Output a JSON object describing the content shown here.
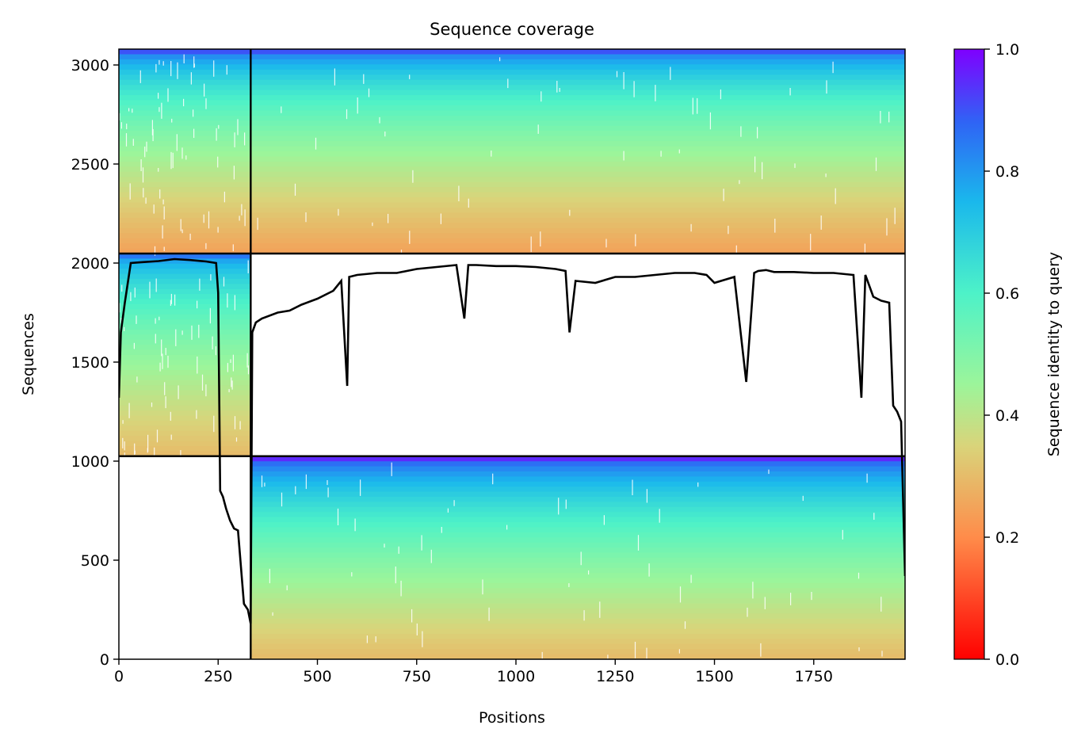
{
  "chart_data": {
    "type": "heatmap",
    "title": "Sequence coverage",
    "xlabel": "Positions",
    "ylabel": "Sequences",
    "xlim": [
      0,
      1980
    ],
    "ylim": [
      0,
      3080
    ],
    "xticks": [
      0,
      250,
      500,
      750,
      1000,
      1250,
      1500,
      1750
    ],
    "yticks": [
      0,
      500,
      1000,
      1500,
      2000,
      2500,
      3000
    ],
    "colorbar": {
      "label": "Sequence identity to query",
      "range": [
        0,
        1
      ],
      "ticks": [
        0.0,
        0.2,
        0.4,
        0.6,
        0.8,
        1.0
      ],
      "colormap": "rainbow_r"
    },
    "segment_boundaries": [
      {
        "type": "vertical",
        "x": 332
      },
      {
        "type": "horizontal",
        "y": 1025
      },
      {
        "type": "horizontal",
        "y": 2048
      }
    ],
    "blocks": [
      {
        "x": [
          0,
          332
        ],
        "y": [
          1025,
          2048
        ],
        "identity_top": 0.85,
        "identity_bottom": 0.3
      },
      {
        "x": [
          0,
          332
        ],
        "y": [
          2048,
          3080
        ],
        "identity_top": 0.9,
        "identity_bottom": 0.25
      },
      {
        "x": [
          332,
          1980
        ],
        "y": [
          0,
          1025
        ],
        "identity_top": 0.95,
        "identity_bottom": 0.3
      },
      {
        "x": [
          332,
          1980
        ],
        "y": [
          2048,
          3080
        ],
        "identity_top": 0.9,
        "identity_bottom": 0.25
      }
    ],
    "coverage_line": {
      "x": [
        0,
        5,
        15,
        30,
        60,
        100,
        140,
        180,
        220,
        245,
        250,
        255,
        262,
        270,
        280,
        290,
        300,
        315,
        325,
        332,
        336,
        345,
        360,
        400,
        430,
        460,
        500,
        540,
        560,
        575,
        580,
        600,
        650,
        700,
        750,
        800,
        850,
        870,
        880,
        900,
        950,
        1000,
        1050,
        1100,
        1125,
        1135,
        1150,
        1200,
        1250,
        1300,
        1350,
        1400,
        1450,
        1480,
        1500,
        1550,
        1580,
        1600,
        1610,
        1630,
        1650,
        1700,
        1750,
        1800,
        1850,
        1870,
        1880,
        1900,
        1920,
        1940,
        1950,
        1960,
        1970,
        1980
      ],
      "y": [
        1320,
        1650,
        1800,
        2000,
        2005,
        2010,
        2020,
        2015,
        2008,
        2000,
        1850,
        850,
        820,
        760,
        700,
        660,
        650,
        280,
        250,
        180,
        1650,
        1700,
        1720,
        1750,
        1760,
        1790,
        1820,
        1860,
        1910,
        1380,
        1930,
        1940,
        1950,
        1950,
        1970,
        1980,
        1990,
        1720,
        1990,
        1990,
        1985,
        1985,
        1980,
        1970,
        1960,
        1650,
        1910,
        1900,
        1930,
        1930,
        1940,
        1950,
        1950,
        1940,
        1900,
        1930,
        1400,
        1950,
        1960,
        1965,
        1955,
        1955,
        1950,
        1950,
        1940,
        1320,
        1940,
        1830,
        1810,
        1800,
        1280,
        1250,
        1200,
        420
      ]
    }
  }
}
